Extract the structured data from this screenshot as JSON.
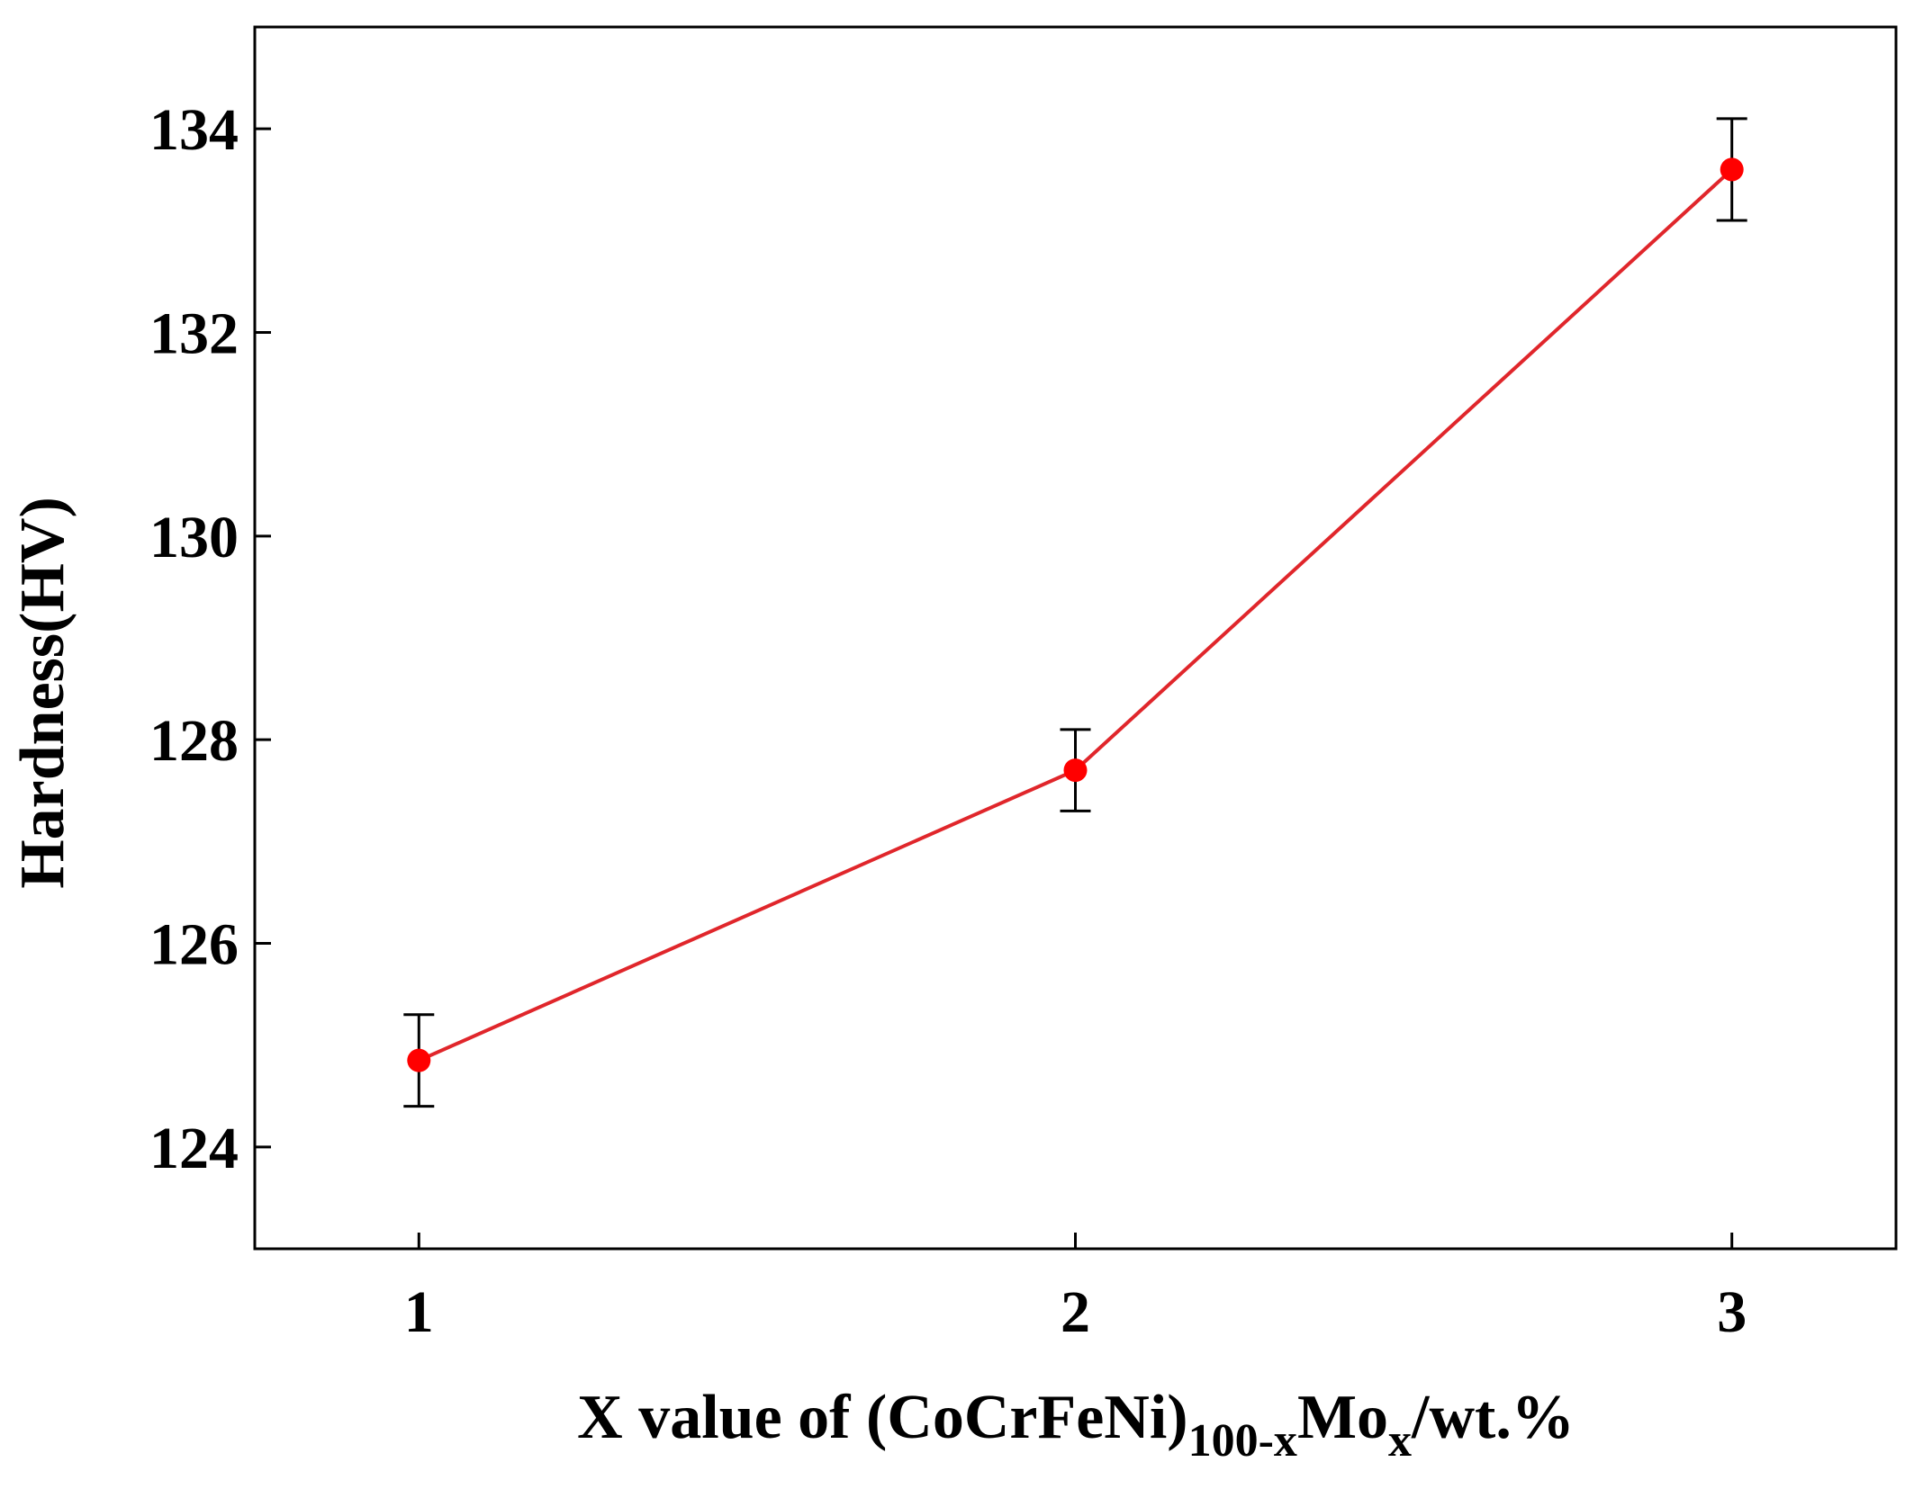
{
  "chart_data": {
    "type": "line",
    "title": "",
    "xlabel": {
      "parts": [
        {
          "text": "X value of (CoCrFeNi)",
          "sub": false
        },
        {
          "text": "100-x",
          "sub": true
        },
        {
          "text": "Mo",
          "sub": false
        },
        {
          "text": "x",
          "sub": true
        },
        {
          "text": "/wt.%",
          "sub": false
        }
      ]
    },
    "ylabel": "Hardness(HV)",
    "x": [
      1,
      2,
      3
    ],
    "x_ticks": [
      "1",
      "2",
      "3"
    ],
    "xlim": [
      0.75,
      3.25
    ],
    "ylim": [
      123,
      135
    ],
    "y_ticks": [
      124,
      126,
      128,
      130,
      132,
      134
    ],
    "y_tick_labels": [
      "124",
      "126",
      "128",
      "130",
      "132",
      "134"
    ],
    "series": [
      {
        "values": [
          124.85,
          127.7,
          133.6
        ],
        "error": [
          0.45,
          0.4,
          0.5
        ]
      }
    ],
    "line_color": "#e0262b",
    "marker_color": "#ff0000",
    "error_bar_color": "#000000",
    "grid": false,
    "legend": "none"
  }
}
